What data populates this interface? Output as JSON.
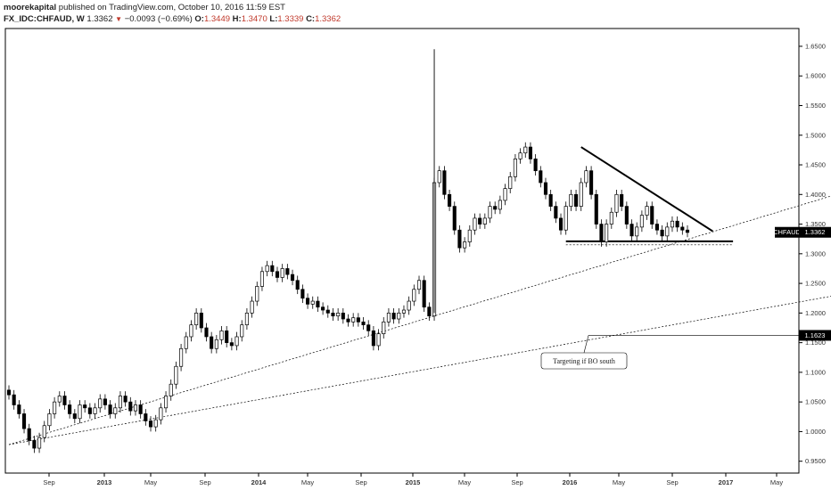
{
  "header": {
    "author": "moorekapital",
    "published": "published on TradingView.com, October 10, 2016 11:59 EST",
    "symbol": "FX_IDC:CHFAUD, W",
    "last": "1.3362",
    "change": "−0.0093 (−0.69%)",
    "o_label": "O:",
    "o_value": "1.3449",
    "h_label": "H:",
    "h_value": "1.3470",
    "l_label": "L:",
    "l_value": "1.3339",
    "c_label": "C:",
    "c_value": "1.3362"
  },
  "chart_data": {
    "type": "candlestick",
    "symbol": "CHFAUD",
    "interval": "W",
    "x_ticks": [
      "Sep",
      "2013",
      "May",
      "Sep",
      "2014",
      "May",
      "Sep",
      "2015",
      "May",
      "Sep",
      "2016",
      "May",
      "Sep",
      "2017",
      "May"
    ],
    "x_ticks_bold": [
      "2013",
      "2014",
      "2015",
      "2016",
      "2017"
    ],
    "y_ticks": [
      "1.6500",
      "1.6000",
      "1.5500",
      "1.5000",
      "1.4500",
      "1.4000",
      "1.3500",
      "1.3000",
      "1.2500",
      "1.2000",
      "1.1500",
      "1.1000",
      "1.0500",
      "1.0000",
      "0.9500"
    ],
    "ylim": [
      0.93,
      1.68
    ],
    "price_tag": {
      "label": "CHFAUD",
      "value": "1.3362"
    },
    "target_tag": {
      "value": "1.1623"
    },
    "annotation": "Targeting if BO south",
    "key_levels": {
      "support": 1.321,
      "target": 1.1623
    },
    "series": [
      {
        "name": "CHFAUD",
        "points": [
          [
            1.07,
            1.062
          ],
          [
            1.062,
            1.045
          ],
          [
            1.045,
            1.03
          ],
          [
            1.03,
            1.005
          ],
          [
            1.005,
            0.985
          ],
          [
            0.985,
            0.972
          ],
          [
            0.972,
            0.99
          ],
          [
            0.99,
            1.01
          ],
          [
            1.01,
            1.03
          ],
          [
            1.03,
            1.05
          ],
          [
            1.05,
            1.06
          ],
          [
            1.06,
            1.045
          ],
          [
            1.045,
            1.03
          ],
          [
            1.03,
            1.022
          ],
          [
            1.022,
            1.045
          ],
          [
            1.045,
            1.04
          ],
          [
            1.04,
            1.03
          ],
          [
            1.03,
            1.04
          ],
          [
            1.04,
            1.055
          ],
          [
            1.055,
            1.045
          ],
          [
            1.045,
            1.03
          ],
          [
            1.03,
            1.04
          ],
          [
            1.04,
            1.06
          ],
          [
            1.06,
            1.05
          ],
          [
            1.05,
            1.035
          ],
          [
            1.035,
            1.045
          ],
          [
            1.045,
            1.03
          ],
          [
            1.03,
            1.018
          ],
          [
            1.018,
            1.008
          ],
          [
            1.008,
            1.02
          ],
          [
            1.02,
            1.04
          ],
          [
            1.04,
            1.06
          ],
          [
            1.06,
            1.08
          ],
          [
            1.08,
            1.11
          ],
          [
            1.11,
            1.14
          ],
          [
            1.14,
            1.16
          ],
          [
            1.16,
            1.18
          ],
          [
            1.18,
            1.2
          ],
          [
            1.2,
            1.175
          ],
          [
            1.175,
            1.16
          ],
          [
            1.16,
            1.14
          ],
          [
            1.14,
            1.155
          ],
          [
            1.155,
            1.17
          ],
          [
            1.17,
            1.15
          ],
          [
            1.15,
            1.145
          ],
          [
            1.145,
            1.16
          ],
          [
            1.16,
            1.18
          ],
          [
            1.18,
            1.2
          ],
          [
            1.2,
            1.22
          ],
          [
            1.22,
            1.245
          ],
          [
            1.245,
            1.27
          ],
          [
            1.27,
            1.28
          ],
          [
            1.28,
            1.27
          ],
          [
            1.27,
            1.26
          ],
          [
            1.26,
            1.275
          ],
          [
            1.275,
            1.265
          ],
          [
            1.265,
            1.255
          ],
          [
            1.255,
            1.24
          ],
          [
            1.24,
            1.225
          ],
          [
            1.225,
            1.215
          ],
          [
            1.215,
            1.22
          ],
          [
            1.22,
            1.21
          ],
          [
            1.21,
            1.205
          ],
          [
            1.205,
            1.2
          ],
          [
            1.2,
            1.195
          ],
          [
            1.195,
            1.2
          ],
          [
            1.2,
            1.19
          ],
          [
            1.19,
            1.185
          ],
          [
            1.185,
            1.192
          ],
          [
            1.192,
            1.185
          ],
          [
            1.185,
            1.18
          ],
          [
            1.18,
            1.17
          ],
          [
            1.17,
            1.145
          ],
          [
            1.145,
            1.165
          ],
          [
            1.165,
            1.185
          ],
          [
            1.185,
            1.2
          ],
          [
            1.2,
            1.19
          ],
          [
            1.19,
            1.2
          ],
          [
            1.2,
            1.205
          ],
          [
            1.205,
            1.22
          ],
          [
            1.22,
            1.24
          ],
          [
            1.24,
            1.255
          ],
          [
            1.255,
            1.21
          ],
          [
            1.21,
            1.195
          ],
          [
            1.195,
            1.42
          ],
          [
            1.42,
            1.44
          ],
          [
            1.44,
            1.4
          ],
          [
            1.4,
            1.38
          ],
          [
            1.38,
            1.34
          ],
          [
            1.34,
            1.31
          ],
          [
            1.31,
            1.32
          ],
          [
            1.32,
            1.34
          ],
          [
            1.34,
            1.36
          ],
          [
            1.36,
            1.35
          ],
          [
            1.35,
            1.36
          ],
          [
            1.36,
            1.38
          ],
          [
            1.38,
            1.375
          ],
          [
            1.375,
            1.39
          ],
          [
            1.39,
            1.41
          ],
          [
            1.41,
            1.43
          ],
          [
            1.43,
            1.46
          ],
          [
            1.46,
            1.47
          ],
          [
            1.47,
            1.48
          ],
          [
            1.48,
            1.46
          ],
          [
            1.46,
            1.44
          ],
          [
            1.44,
            1.42
          ],
          [
            1.42,
            1.4
          ],
          [
            1.4,
            1.38
          ],
          [
            1.38,
            1.36
          ],
          [
            1.36,
            1.34
          ],
          [
            1.34,
            1.38
          ],
          [
            1.38,
            1.4
          ],
          [
            1.4,
            1.38
          ],
          [
            1.38,
            1.42
          ],
          [
            1.42,
            1.44
          ],
          [
            1.44,
            1.4
          ],
          [
            1.4,
            1.35
          ],
          [
            1.35,
            1.32
          ],
          [
            1.32,
            1.35
          ],
          [
            1.35,
            1.37
          ],
          [
            1.37,
            1.4
          ],
          [
            1.4,
            1.38
          ],
          [
            1.38,
            1.35
          ],
          [
            1.35,
            1.33
          ],
          [
            1.33,
            1.345
          ],
          [
            1.345,
            1.365
          ],
          [
            1.365,
            1.38
          ],
          [
            1.38,
            1.35
          ],
          [
            1.35,
            1.34
          ],
          [
            1.34,
            1.33
          ],
          [
            1.33,
            1.345
          ],
          [
            1.345,
            1.355
          ],
          [
            1.355,
            1.345
          ],
          [
            1.345,
            1.34
          ],
          [
            1.34,
            1.336
          ]
        ]
      }
    ],
    "trendlines": [
      {
        "from": [
          0,
          0.978
        ],
        "to": [
          168,
          1.412
        ]
      },
      {
        "from": [
          0,
          0.978
        ],
        "to": [
          168,
          1.237
        ]
      },
      {
        "from": [
          113,
          1.48
        ],
        "to": [
          139,
          1.338
        ]
      },
      {
        "from": [
          110,
          1.321
        ],
        "to": [
          143,
          1.321
        ]
      }
    ]
  }
}
